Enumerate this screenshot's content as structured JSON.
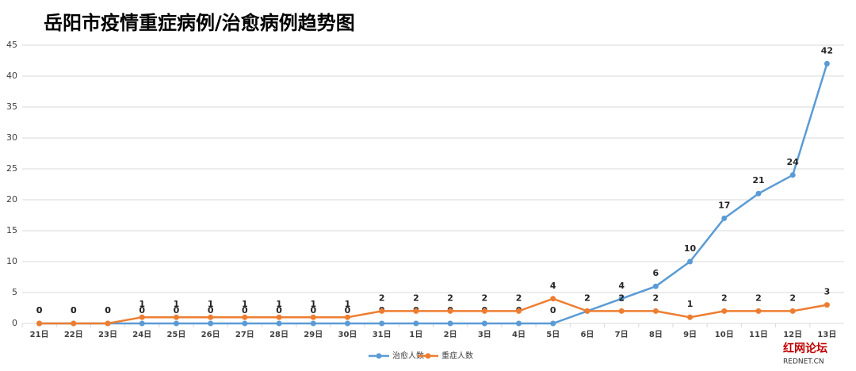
{
  "chart_data": {
    "type": "line",
    "title": "岳阳市疫情重症病例/治愈病例趋势图",
    "categories": [
      "21日",
      "22日",
      "23日",
      "24日",
      "25日",
      "26日",
      "27日",
      "28日",
      "29日",
      "30日",
      "31日",
      "1日",
      "2日",
      "3日",
      "4日",
      "5日",
      "6日",
      "7日",
      "8日",
      "9日",
      "10日",
      "11日",
      "12日",
      "13日"
    ],
    "series": [
      {
        "name": "治愈人数",
        "color": "#5b9bd5",
        "values": [
          0,
          0,
          0,
          0,
          0,
          0,
          0,
          0,
          0,
          0,
          0,
          0,
          0,
          0,
          0,
          0,
          2,
          4,
          6,
          10,
          17,
          21,
          24,
          42
        ]
      },
      {
        "name": "重症人数",
        "color": "#ed7d31",
        "values": [
          0,
          0,
          0,
          1,
          1,
          1,
          1,
          1,
          1,
          1,
          2,
          2,
          2,
          2,
          2,
          4,
          2,
          2,
          2,
          1,
          2,
          2,
          2,
          3
        ]
      }
    ],
    "ylim": [
      0,
      45
    ],
    "yticks": [
      0,
      5,
      10,
      15,
      20,
      25,
      30,
      35,
      40,
      45
    ],
    "grid": true,
    "legend": "bottom",
    "watermark": {
      "name": "红网论坛",
      "site": "REDNET.CN"
    }
  }
}
